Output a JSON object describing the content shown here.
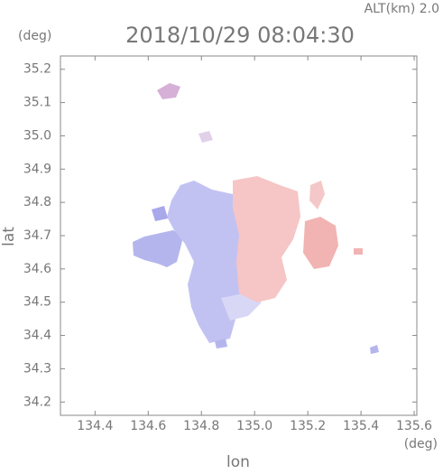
{
  "chart_data": {
    "type": "map",
    "title": "2018/10/29 08:04:30",
    "annotation": "ALT(km)  2.0",
    "y_unit": "(deg)",
    "x_unit": "(deg)",
    "x_label": "lon",
    "y_label": "lat",
    "xlim": [
      134.27,
      135.61
    ],
    "ylim": [
      34.16,
      35.24
    ],
    "xticks": [
      134.4,
      134.6,
      134.8,
      {
        "value": 135,
        "label": "135.0"
      },
      135.2,
      135.4,
      135.6
    ],
    "yticks": [
      34.2,
      34.3,
      34.4,
      34.5,
      34.6,
      34.7,
      34.8,
      34.9,
      {
        "value": 35,
        "label": "35.0"
      },
      35.1,
      35.2
    ]
  }
}
